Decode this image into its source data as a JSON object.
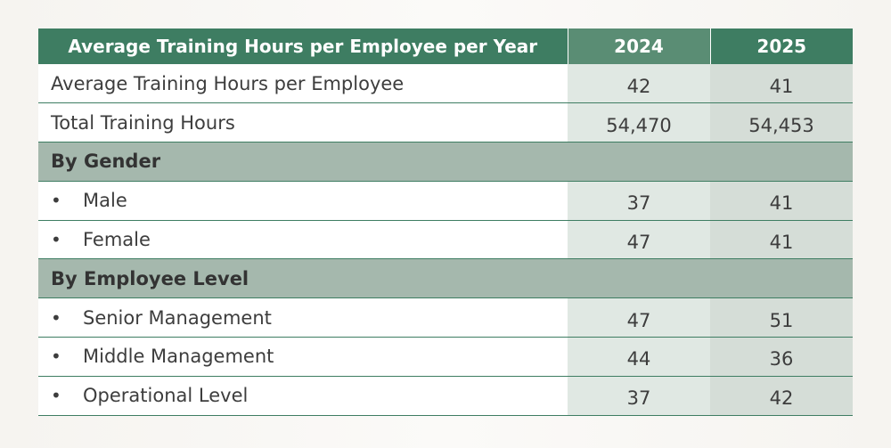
{
  "table": {
    "header": {
      "label": "Average Training Hours per Employee per Year",
      "col_2024": "2024",
      "col_2025": "2025"
    },
    "rows": [
      {
        "type": "data",
        "label": "Average Training Hours per Employee",
        "v2024": "42",
        "v2025": "41"
      },
      {
        "type": "data",
        "label": "Total Training Hours",
        "v2024": "54,470",
        "v2025": "54,453"
      },
      {
        "type": "section",
        "label": "By Gender"
      },
      {
        "type": "bullet",
        "bullet": "•",
        "label": "Male",
        "v2024": "37",
        "v2025": "41"
      },
      {
        "type": "bullet",
        "bullet": "•",
        "label": "Female",
        "v2024": "47",
        "v2025": "41"
      },
      {
        "type": "section",
        "label": "By Employee Level"
      },
      {
        "type": "bullet",
        "bullet": "•",
        "label": "Senior Management",
        "v2024": "47",
        "v2025": "51"
      },
      {
        "type": "bullet",
        "bullet": "•",
        "label": "Middle Management",
        "v2024": "44",
        "v2025": "36"
      },
      {
        "type": "bullet",
        "bullet": "•",
        "label": "Operational Level",
        "v2024": "37",
        "v2025": "42"
      }
    ]
  },
  "colors": {
    "header_green": "#3e7d62",
    "header_2024": "#5a8d74",
    "section_band": "#a5b8ad",
    "cell_2024": "#e0e8e3",
    "cell_2025": "#d5ddd7",
    "rule": "#3e7d62"
  }
}
